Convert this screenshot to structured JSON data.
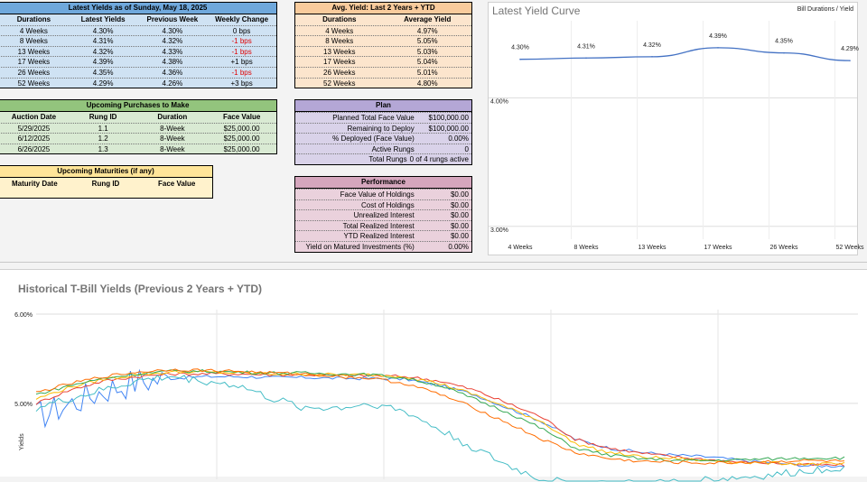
{
  "latest": {
    "title": "Latest Yields as of Sunday, May 18, 2025",
    "headers": [
      "Durations",
      "Latest Yields",
      "Previous Week",
      "Weekly Change"
    ],
    "rows": [
      {
        "d": "4 Weeks",
        "l": "4.30%",
        "p": "4.30%",
        "c": "0 bps",
        "neg": false
      },
      {
        "d": "8 Weeks",
        "l": "4.31%",
        "p": "4.32%",
        "c": "-1 bps",
        "neg": true
      },
      {
        "d": "13 Weeks",
        "l": "4.32%",
        "p": "4.33%",
        "c": "-1 bps",
        "neg": true
      },
      {
        "d": "17 Weeks",
        "l": "4.39%",
        "p": "4.38%",
        "c": "+1 bps",
        "neg": false
      },
      {
        "d": "26 Weeks",
        "l": "4.35%",
        "p": "4.36%",
        "c": "-1 bps",
        "neg": true
      },
      {
        "d": "52 Weeks",
        "l": "4.29%",
        "p": "4.26%",
        "c": "+3 bps",
        "neg": false
      }
    ]
  },
  "avg": {
    "title": "Avg. Yield: Last 2 Years + YTD",
    "headers": [
      "Durations",
      "Average Yield"
    ],
    "rows": [
      {
        "d": "4 Weeks",
        "v": "4.97%"
      },
      {
        "d": "8 Weeks",
        "v": "5.05%"
      },
      {
        "d": "13 Weeks",
        "v": "5.03%"
      },
      {
        "d": "17 Weeks",
        "v": "5.04%"
      },
      {
        "d": "26 Weeks",
        "v": "5.01%"
      },
      {
        "d": "52 Weeks",
        "v": "4.80%"
      }
    ]
  },
  "purchases": {
    "title": "Upcoming Purchases to Make",
    "headers": [
      "Auction Date",
      "Rung ID",
      "Duration",
      "Face Value"
    ],
    "rows": [
      {
        "a": "5/29/2025",
        "r": "1.1",
        "d": "8-Week",
        "f": "$25,000.00"
      },
      {
        "a": "6/12/2025",
        "r": "1.2",
        "d": "8-Week",
        "f": "$25,000.00"
      },
      {
        "a": "6/26/2025",
        "r": "1.3",
        "d": "8-Week",
        "f": "$25,000.00"
      }
    ]
  },
  "maturities": {
    "title": "Upcoming Maturities (if any)",
    "headers": [
      "Maturity Date",
      "Rung ID",
      "Face Value"
    ]
  },
  "plan": {
    "title": "Plan",
    "rows": [
      {
        "k": "Planned Total Face Value",
        "v": "$100,000.00"
      },
      {
        "k": "Remaining to Deploy",
        "v": "$100,000.00"
      },
      {
        "k": "% Deployed (Face Value)",
        "v": "0.00%"
      },
      {
        "k": "Active Rungs",
        "v": "0"
      },
      {
        "k": "Total Rungs",
        "v": "0 of 4 rungs active"
      }
    ]
  },
  "performance": {
    "title": "Performance",
    "rows": [
      {
        "k": "Face Value of Holdings",
        "v": "$0.00"
      },
      {
        "k": "Cost of Holdings",
        "v": "$0.00"
      },
      {
        "k": "Unrealized Interest",
        "v": "$0.00"
      },
      {
        "k": "Total Realized Interest",
        "v": "$0.00"
      },
      {
        "k": "YTD Realized Interest",
        "v": "$0.00"
      },
      {
        "k": "Yield on Matured Investments (%)",
        "v": "0.00%"
      }
    ]
  },
  "chart_data": [
    {
      "type": "line",
      "title": "Latest Yield Curve",
      "legend": "Bill Durations / Yield",
      "categories": [
        "4 Weeks",
        "8 Weeks",
        "13 Weeks",
        "17 Weeks",
        "26 Weeks",
        "52 Weeks"
      ],
      "values": [
        4.3,
        4.31,
        4.32,
        4.39,
        4.35,
        4.29
      ],
      "data_labels": [
        "4.30%",
        "4.31%",
        "4.32%",
        "4.39%",
        "4.35%",
        "4.29%"
      ],
      "y_ticks": [
        "4.00%",
        "3.00%"
      ],
      "ylim": [
        2.9,
        4.6
      ],
      "color": "#4472c4"
    },
    {
      "type": "line",
      "title": "Historical T-Bill Yields (Previous 2 Years + YTD)",
      "ylabel": "Yields",
      "y_ticks": [
        "6.00%",
        "5.00%"
      ],
      "ylim": [
        4.15,
        6.05
      ],
      "series": [
        {
          "color": "#4285f4",
          "values": [
            4.85,
            5.0,
            5.15,
            5.25,
            5.28,
            5.3,
            5.3,
            5.29,
            5.29,
            5.28,
            5.28,
            5.27,
            5.2,
            5.1,
            4.95,
            4.8,
            4.6,
            4.5,
            4.45,
            4.42,
            4.4,
            4.36,
            4.33,
            4.3,
            4.3
          ]
        },
        {
          "color": "#ea4335",
          "values": [
            5.0,
            5.15,
            5.25,
            5.3,
            5.33,
            5.33,
            5.33,
            5.32,
            5.32,
            5.31,
            5.31,
            5.3,
            5.25,
            5.15,
            5.0,
            4.85,
            4.6,
            4.5,
            4.44,
            4.4,
            4.37,
            4.34,
            4.33,
            4.31,
            4.31
          ]
        },
        {
          "color": "#fbbc04",
          "values": [
            5.05,
            5.18,
            5.27,
            5.32,
            5.35,
            5.35,
            5.34,
            5.33,
            5.33,
            5.32,
            5.32,
            5.3,
            5.22,
            5.1,
            4.95,
            4.8,
            4.55,
            4.45,
            4.4,
            4.38,
            4.36,
            4.34,
            4.33,
            4.32,
            4.32
          ]
        },
        {
          "color": "#34a853",
          "values": [
            5.1,
            5.2,
            5.28,
            5.33,
            5.36,
            5.36,
            5.35,
            5.34,
            5.34,
            5.33,
            5.32,
            5.28,
            5.2,
            5.05,
            4.9,
            4.72,
            4.5,
            4.42,
            4.38,
            4.36,
            4.36,
            4.37,
            4.38,
            4.39,
            4.39
          ]
        },
        {
          "color": "#ff6d01",
          "values": [
            5.12,
            5.22,
            5.3,
            5.35,
            5.38,
            5.37,
            5.36,
            5.34,
            5.33,
            5.3,
            5.28,
            5.22,
            5.1,
            4.95,
            4.78,
            4.6,
            4.45,
            4.38,
            4.35,
            4.34,
            4.33,
            4.34,
            4.35,
            4.36,
            4.35
          ]
        },
        {
          "color": "#46bdc6",
          "values": [
            4.95,
            5.05,
            5.15,
            5.25,
            5.3,
            5.25,
            5.2,
            5.05,
            4.95,
            4.95,
            5.0,
            4.9,
            4.7,
            4.5,
            4.3,
            4.15,
            4.1,
            4.1,
            4.1,
            4.12,
            4.15,
            4.17,
            4.2,
            4.25,
            4.29
          ]
        }
      ]
    }
  ]
}
